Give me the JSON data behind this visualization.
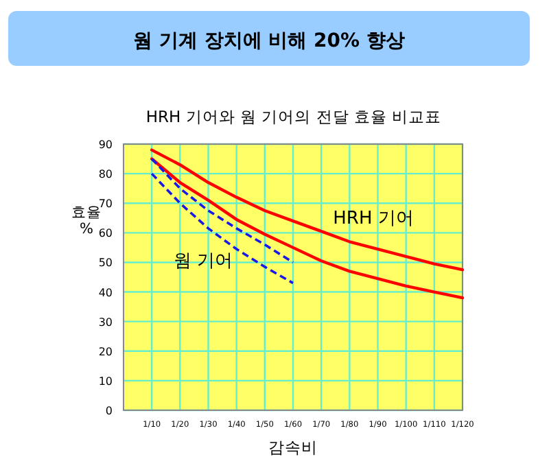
{
  "chart_data": {
    "type": "line",
    "title": "웜 기계 장치에 비해 20% 향상",
    "subtitle": "HRH 기어와 웜 기어의 전달 효율 비교표",
    "xlabel": "감속비",
    "ylabel": "효율 %",
    "categories": [
      "1/10",
      "1/20",
      "1/30",
      "1/40",
      "1/50",
      "1/60",
      "1/70",
      "1/80",
      "1/90",
      "1/100",
      "1/110",
      "1/120"
    ],
    "ylim": [
      0,
      90
    ],
    "yticks": [
      0,
      10,
      20,
      30,
      40,
      50,
      60,
      70,
      80,
      90
    ],
    "grid": true,
    "marker": "none",
    "series": [
      {
        "color": "#ff0000",
        "line_style": "solid",
        "values": [
          88,
          83,
          77,
          72,
          67.5,
          64,
          60.5,
          57,
          54.5,
          52,
          49.5,
          47.5
        ]
      },
      {
        "color": "#ff0000",
        "line_style": "solid",
        "values": [
          85,
          77,
          71,
          64.5,
          59.5,
          55,
          50.5,
          47,
          44.5,
          42,
          40,
          38
        ]
      },
      {
        "color": "#1a1ae6",
        "line_style": "dashed",
        "values": [
          85,
          75,
          67.5,
          61.5,
          56,
          50,
          null,
          null,
          null,
          null,
          null,
          null
        ]
      },
      {
        "color": "#1a1ae6",
        "line_style": "dashed",
        "values": [
          80,
          70,
          61.5,
          54.5,
          48.5,
          43,
          null,
          null,
          null,
          null,
          null,
          null
        ]
      }
    ],
    "annotations": [
      "HRH 기어",
      "웜 기어"
    ]
  }
}
